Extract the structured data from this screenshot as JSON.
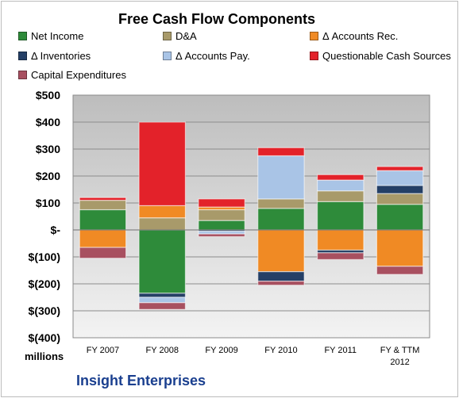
{
  "chart_data": {
    "type": "bar",
    "stacked": true,
    "title": "Free Cash Flow Components",
    "categories": [
      "FY 2007",
      "FY 2008",
      "FY 2009",
      "FY 2010",
      "FY 2011",
      "FY & TTM\n2012"
    ],
    "y_tick_labels": [
      "$500",
      "$400",
      "$300",
      "$200",
      "$100",
      "$-",
      "$(100)",
      "$(200)",
      "$(300)",
      "$(400)"
    ],
    "ylim": [
      -400,
      500
    ],
    "units_label": "millions",
    "company": "Insight Enterprises",
    "grid": true,
    "legend_position": "top",
    "series": [
      {
        "name": "Net Income",
        "color": "#2e8b3a",
        "values": [
          75,
          -235,
          35,
          80,
          105,
          95
        ]
      },
      {
        "name": "D&A",
        "color": "#a89a6a",
        "values": [
          35,
          45,
          40,
          35,
          40,
          40
        ]
      },
      {
        "name": "Δ Accounts Rec.",
        "color": "#f08a24",
        "values": [
          -65,
          45,
          10,
          -155,
          -75,
          -135
        ]
      },
      {
        "name": "Δ Inventories",
        "color": "#243f66",
        "values": [
          0,
          -15,
          -5,
          -35,
          -10,
          30
        ]
      },
      {
        "name": "Δ Accounts Pay.",
        "color": "#a9c4e6",
        "values": [
          0,
          -20,
          -10,
          160,
          40,
          55
        ]
      },
      {
        "name": "Questionable Cash Sources",
        "color": "#e3222a",
        "values": [
          10,
          310,
          30,
          30,
          20,
          15
        ]
      },
      {
        "name": "Capital Expenditures",
        "color": "#a85060",
        "values": [
          -40,
          -25,
          -10,
          -15,
          -25,
          -30
        ]
      }
    ]
  }
}
